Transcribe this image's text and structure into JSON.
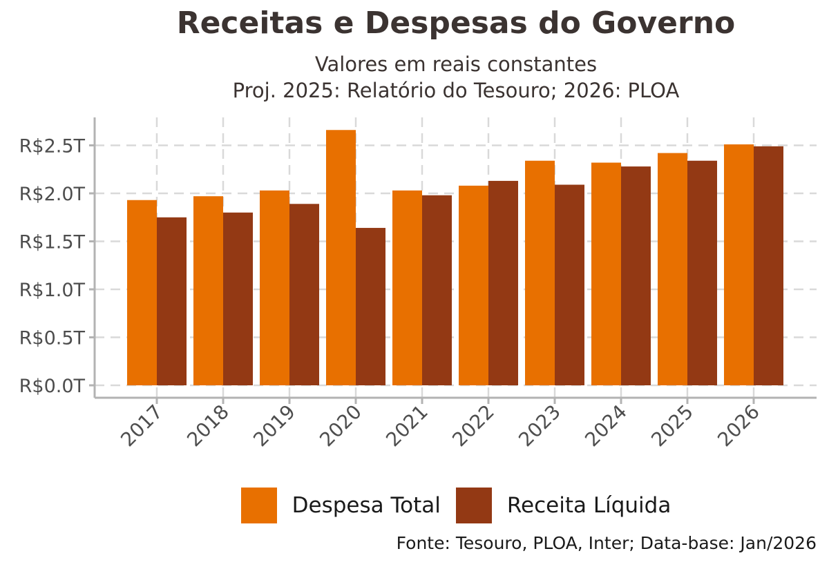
{
  "header": {
    "title": "Receitas e Despesas do Governo",
    "subtitle_line1": "Valores em reais constantes",
    "subtitle_line2": "Proj. 2025: Relatório do Tesouro; 2026: PLOA"
  },
  "caption": "Fonte: Tesouro, PLOA, Inter; Data-base: Jan/2026",
  "chart_data": {
    "type": "bar",
    "categories": [
      "2017",
      "2018",
      "2019",
      "2020",
      "2021",
      "2022",
      "2023",
      "2024",
      "2025",
      "2026"
    ],
    "series": [
      {
        "name": "Despesa Total",
        "color": "#E87000",
        "values": [
          1.93,
          1.97,
          2.03,
          2.66,
          2.03,
          2.08,
          2.34,
          2.32,
          2.42,
          2.51
        ]
      },
      {
        "name": "Receita Líquida",
        "color": "#933914",
        "values": [
          1.75,
          1.8,
          1.89,
          1.64,
          1.98,
          2.13,
          2.09,
          2.28,
          2.34,
          2.49
        ]
      }
    ],
    "ylim": [
      0,
      2.7
    ],
    "yticks": [
      0,
      0.5,
      1.0,
      1.5,
      2.0,
      2.5
    ],
    "ytick_labels": [
      "R$0.0T",
      "R$0.5T",
      "R$1.0T",
      "R$1.5T",
      "R$2.0T",
      "R$2.5T"
    ],
    "xlabel": "",
    "ylabel": "",
    "grid": true,
    "legend_position": "bottom"
  }
}
